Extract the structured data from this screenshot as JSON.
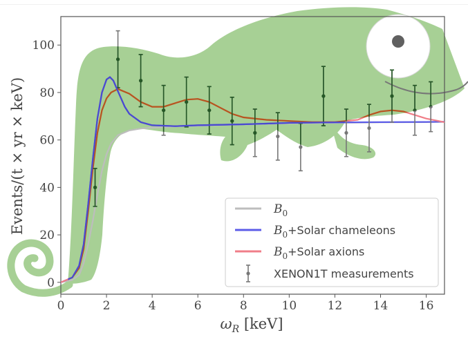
{
  "chart_data": {
    "type": "line",
    "xlabel": "ω_R [keV]",
    "ylabel": "Events/(t × yr × keV)",
    "xlim": [
      0,
      16.8
    ],
    "ylim": [
      -5,
      112
    ],
    "xticks": [
      "0",
      "2",
      "4",
      "6",
      "8",
      "10",
      "12",
      "14",
      "16"
    ],
    "yticks": [
      "0",
      "20",
      "40",
      "60",
      "80",
      "100"
    ],
    "legend_position": "bottom-right",
    "series": [
      {
        "name": "B0",
        "name_main": "B",
        "name_sub": "0",
        "name_suffix": "",
        "color": "#bdbdbd",
        "x": [
          0,
          0.5,
          0.8,
          1.0,
          1.2,
          1.4,
          1.6,
          1.8,
          2.0,
          2.2,
          2.5,
          3.0,
          3.5,
          4.0,
          5.0,
          6.0,
          8.0,
          10.0,
          12.0,
          14.0,
          16.0,
          16.8
        ],
        "y": [
          0,
          1,
          3,
          8,
          16,
          26,
          37,
          47,
          54,
          58.5,
          62,
          64,
          64.8,
          65.2,
          65.7,
          66,
          66.5,
          67,
          67.2,
          67.4,
          67.5,
          67.6
        ]
      },
      {
        "name": "B0+Solar chameleons",
        "name_main": "B",
        "name_sub": "0",
        "name_suffix": "+Solar chameleons",
        "color": "#5c5ce8",
        "x": [
          0,
          0.5,
          0.8,
          1.0,
          1.2,
          1.4,
          1.6,
          1.8,
          2.0,
          2.15,
          2.3,
          2.5,
          2.8,
          3.0,
          3.5,
          4.0,
          5.0,
          6.0,
          8.0,
          10.0,
          12.0,
          14.0,
          16.0,
          16.8
        ],
        "y": [
          0,
          2,
          7,
          16,
          33,
          52,
          69,
          80,
          85.5,
          86.5,
          85,
          80.5,
          74,
          71,
          67.5,
          66.2,
          65.8,
          66.2,
          66.6,
          67.2,
          67.4,
          67.5,
          67.6,
          67.7
        ]
      },
      {
        "name": "B0+Solar axions",
        "name_main": "B",
        "name_sub": "0",
        "name_suffix": "+Solar axions",
        "color": "#f07e88",
        "x": [
          0,
          0.5,
          0.8,
          1.0,
          1.2,
          1.4,
          1.6,
          1.8,
          2.0,
          2.2,
          2.5,
          3.0,
          3.5,
          4.0,
          4.5,
          5.0,
          5.5,
          6.0,
          6.5,
          7.0,
          7.5,
          8.0,
          9.0,
          10.0,
          11.0,
          12.0,
          13.0,
          13.5,
          14.0,
          14.5,
          15.0,
          15.5,
          16.0,
          16.8
        ],
        "y": [
          0,
          2,
          6,
          14,
          30,
          48,
          63,
          72.5,
          77.5,
          80,
          81.5,
          79.5,
          76,
          74,
          74,
          75.5,
          77,
          77.3,
          76,
          73.5,
          71,
          69.5,
          68.5,
          68,
          67.5,
          67.5,
          68.5,
          70.5,
          72,
          72.5,
          72,
          70.5,
          69,
          67.5
        ]
      }
    ],
    "measurements": {
      "name": "XENON1T measurements",
      "color": "#777777",
      "points": [
        {
          "x": 1.5,
          "y": 40,
          "err": 8
        },
        {
          "x": 2.5,
          "y": 94,
          "err": 12
        },
        {
          "x": 3.5,
          "y": 85,
          "err": 11
        },
        {
          "x": 4.5,
          "y": 72.5,
          "err": 10.5
        },
        {
          "x": 5.5,
          "y": 76,
          "err": 10.5
        },
        {
          "x": 6.5,
          "y": 72.5,
          "err": 10
        },
        {
          "x": 7.5,
          "y": 68,
          "err": 10
        },
        {
          "x": 8.5,
          "y": 63,
          "err": 10
        },
        {
          "x": 9.5,
          "y": 61.5,
          "err": 10
        },
        {
          "x": 10.5,
          "y": 57,
          "err": 10
        },
        {
          "x": 11.5,
          "y": 78.5,
          "err": 12.5
        },
        {
          "x": 12.5,
          "y": 63,
          "err": 10
        },
        {
          "x": 13.5,
          "y": 65,
          "err": 10
        },
        {
          "x": 14.5,
          "y": 78.5,
          "err": 11
        },
        {
          "x": 15.5,
          "y": 72.5,
          "err": 10.5
        },
        {
          "x": 16.2,
          "y": 74,
          "err": 10.5
        }
      ]
    },
    "colors": {
      "chameleon_body": "#a7d095",
      "chameleon_dark_overlay": "#255826",
      "axes": "#555555",
      "text": "#444444"
    }
  }
}
